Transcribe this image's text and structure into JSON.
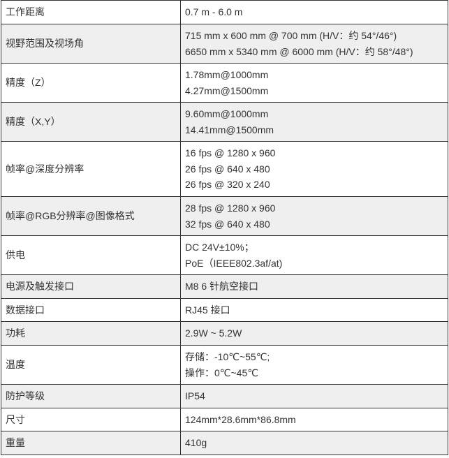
{
  "rows": [
    {
      "label": "工作距离",
      "values": [
        "0.7 m - 6.0 m"
      ]
    },
    {
      "label": "视野范围及视场角",
      "values": [
        "715 mm x 600 mm @ 700 mm (H/V：约 54°/46°)",
        "6650 mm x 5340 mm @ 6000 mm (H/V：约 58°/48°)"
      ]
    },
    {
      "label": "精度（Z）",
      "values": [
        "1.78mm@1000mm",
        "4.27mm@1500mm"
      ]
    },
    {
      "label": "精度（X,Y）",
      "values": [
        "9.60mm@1000mm",
        "14.41mm@1500mm"
      ]
    },
    {
      "label": "帧率@深度分辨率",
      "values": [
        "16 fps @ 1280 x 960",
        "26 fps @ 640 x 480",
        "26 fps @ 320 x 240"
      ]
    },
    {
      "label": "帧率@RGB分辨率@图像格式",
      "values": [
        "28 fps @ 1280 x 960",
        "32 fps @ 640 x 480"
      ]
    },
    {
      "label": "供电",
      "values": [
        "DC 24V±10%；",
        "PoE（IEEE802.3af/at)"
      ]
    },
    {
      "label": "电源及触发接口",
      "values": [
        "M8 6 针航空接口"
      ]
    },
    {
      "label": "数据接口",
      "values": [
        "RJ45 接口"
      ]
    },
    {
      "label": "功耗",
      "values": [
        "2.9W ~ 5.2W"
      ]
    },
    {
      "label": "温度",
      "values": [
        "存储：-10℃~55℃;",
        "操作：0℃~45℃"
      ]
    },
    {
      "label": "防护等级",
      "values": [
        "IP54"
      ]
    },
    {
      "label": "尺寸",
      "values": [
        "124mm*28.6mm*86.8mm"
      ]
    },
    {
      "label": "重量",
      "values": [
        "410g"
      ]
    }
  ]
}
